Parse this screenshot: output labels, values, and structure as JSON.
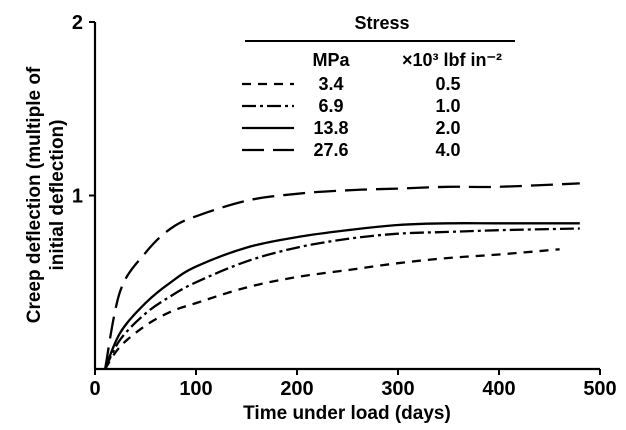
{
  "chart_data": {
    "type": "line",
    "xlabel": "Time under load (days)",
    "ylabel_lines": [
      "Creep deflection (multiple of",
      "initial deflection)"
    ],
    "xlim": [
      0,
      500
    ],
    "ylim": [
      0,
      2
    ],
    "x_ticks": [
      0,
      100,
      200,
      300,
      400,
      500
    ],
    "y_ticks": [
      1,
      2
    ],
    "x_tick_labels": [
      "0",
      "100",
      "200",
      "300",
      "400",
      "500"
    ],
    "y_tick_labels": [
      "1",
      "2"
    ],
    "legend": {
      "title": "Stress",
      "col1_header": "MPa",
      "col2_header": "×10³ lbf in⁻²",
      "placement": "top-center"
    },
    "series": [
      {
        "mpa": "3.4",
        "lbf": "0.5",
        "style": "short-dash",
        "x": [
          10,
          25,
          50,
          75,
          100,
          150,
          200,
          250,
          300,
          350,
          400,
          460
        ],
        "y": [
          0.0,
          0.13,
          0.25,
          0.33,
          0.38,
          0.47,
          0.53,
          0.57,
          0.61,
          0.64,
          0.66,
          0.69
        ]
      },
      {
        "mpa": "6.9",
        "lbf": "1.0",
        "style": "dash-dot",
        "x": [
          10,
          25,
          50,
          75,
          100,
          150,
          200,
          250,
          300,
          350,
          400,
          480
        ],
        "y": [
          0.0,
          0.17,
          0.32,
          0.42,
          0.5,
          0.62,
          0.7,
          0.75,
          0.78,
          0.79,
          0.8,
          0.81
        ]
      },
      {
        "mpa": "13.8",
        "lbf": "2.0",
        "style": "solid",
        "x": [
          10,
          25,
          50,
          75,
          100,
          150,
          200,
          250,
          300,
          350,
          400,
          480
        ],
        "y": [
          0.0,
          0.21,
          0.38,
          0.5,
          0.59,
          0.7,
          0.76,
          0.8,
          0.83,
          0.84,
          0.84,
          0.84
        ]
      },
      {
        "mpa": "27.6",
        "lbf": "4.0",
        "style": "long-dash",
        "x": [
          10,
          25,
          50,
          75,
          100,
          150,
          200,
          250,
          300,
          350,
          400,
          480
        ],
        "y": [
          0.0,
          0.45,
          0.67,
          0.81,
          0.88,
          0.97,
          1.01,
          1.03,
          1.04,
          1.05,
          1.05,
          1.07
        ]
      }
    ]
  }
}
